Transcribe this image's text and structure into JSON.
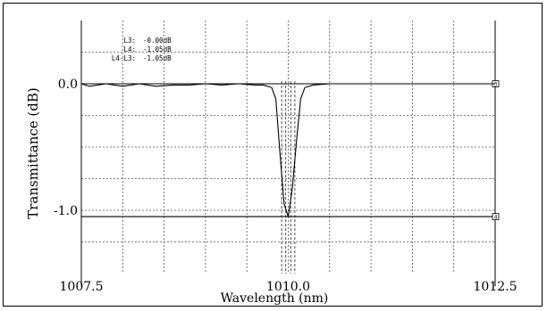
{
  "chart_data": {
    "type": "line",
    "title": "",
    "xlabel": "Wavelength (nm)",
    "ylabel": "Transmittance (dB)",
    "xlim": [
      1007.5,
      1012.5
    ],
    "ylim": [
      -1.5,
      0.5
    ],
    "grid": true,
    "x_ticks": [
      {
        "value": 1007.5,
        "label": "1007.5"
      },
      {
        "value": 1010.0,
        "label": "1010.0"
      },
      {
        "value": 1012.5,
        "label": "1012.5"
      }
    ],
    "y_ticks": [
      {
        "value": 0.0,
        "label": "0.0"
      },
      {
        "value": -1.0,
        "label": "-1.0"
      }
    ],
    "markers": [
      {
        "name": "L3",
        "value": 0.0,
        "label": "3"
      },
      {
        "name": "L4",
        "value": -1.05,
        "label": "4"
      }
    ],
    "annotations": [
      {
        "key": "L3:",
        "value": "-0.00dB"
      },
      {
        "key": "L4:",
        "value": "-1.05dB"
      },
      {
        "key": "L4-L3:",
        "value": "-1.05dB"
      }
    ],
    "series": [
      {
        "x": [
          1007.5,
          1007.6,
          1007.8,
          1008.0,
          1008.2,
          1008.4,
          1008.6,
          1008.8,
          1009.0,
          1009.2,
          1009.4,
          1009.6,
          1009.7,
          1009.8,
          1009.85,
          1009.9,
          1009.95,
          1010.0,
          1010.05,
          1010.1,
          1010.15,
          1010.2,
          1010.3,
          1010.5,
          1010.8,
          1011.0,
          1011.5,
          1012.0,
          1012.5
        ],
        "y": [
          0.0,
          -0.02,
          0.0,
          -0.02,
          0.0,
          -0.02,
          -0.01,
          -0.01,
          0.0,
          -0.01,
          0.0,
          -0.01,
          -0.01,
          -0.03,
          -0.12,
          -0.55,
          -0.95,
          -1.05,
          -0.82,
          -0.45,
          -0.12,
          -0.03,
          -0.01,
          0.0,
          0.0,
          0.0,
          0.0,
          0.0,
          0.0
        ]
      }
    ],
    "colors": {
      "line": "#000000",
      "grid": "#555555",
      "background": "#ffffff"
    }
  }
}
